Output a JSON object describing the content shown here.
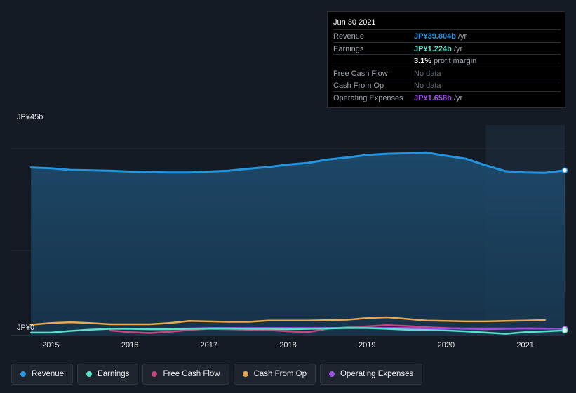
{
  "chart_data": {
    "type": "area",
    "y_axis": {
      "top_label": "JP¥45b",
      "bottom_label": "JP¥0",
      "ylim": [
        0,
        45
      ]
    },
    "x_ticks": [
      {
        "label": "2015",
        "x": 2015.0
      },
      {
        "label": "2016",
        "x": 2016.0
      },
      {
        "label": "2017",
        "x": 2017.0
      },
      {
        "label": "2018",
        "x": 2018.0
      },
      {
        "label": "2019",
        "x": 2019.0
      },
      {
        "label": "2020",
        "x": 2020.0
      },
      {
        "label": "2021",
        "x": 2021.0
      }
    ],
    "xlim": [
      2014.5,
      2021.5
    ],
    "forecast_start": 2020.5,
    "grid": true,
    "legend_position": "bottom",
    "series": [
      {
        "name": "Revenue",
        "color": "#2394df",
        "filled": true,
        "points": [
          [
            2014.75,
            40.5
          ],
          [
            2015.0,
            40.3
          ],
          [
            2015.25,
            39.9
          ],
          [
            2015.5,
            39.8
          ],
          [
            2015.75,
            39.7
          ],
          [
            2016.0,
            39.5
          ],
          [
            2016.25,
            39.4
          ],
          [
            2016.5,
            39.3
          ],
          [
            2016.75,
            39.3
          ],
          [
            2017.0,
            39.5
          ],
          [
            2017.25,
            39.7
          ],
          [
            2017.5,
            40.2
          ],
          [
            2017.75,
            40.6
          ],
          [
            2018.0,
            41.2
          ],
          [
            2018.25,
            41.6
          ],
          [
            2018.5,
            42.4
          ],
          [
            2018.75,
            42.9
          ],
          [
            2019.0,
            43.5
          ],
          [
            2019.25,
            43.8
          ],
          [
            2019.5,
            43.9
          ],
          [
            2019.75,
            44.1
          ],
          [
            2020.0,
            43.3
          ],
          [
            2020.25,
            42.6
          ],
          [
            2020.5,
            41.0
          ],
          [
            2020.75,
            39.6
          ],
          [
            2021.0,
            39.3
          ],
          [
            2021.25,
            39.2
          ],
          [
            2021.5,
            39.8
          ]
        ]
      },
      {
        "name": "Earnings",
        "color": "#59e0c8",
        "filled": false,
        "points": [
          [
            2014.75,
            0.7
          ],
          [
            2015.0,
            0.7
          ],
          [
            2015.25,
            1.1
          ],
          [
            2015.5,
            1.4
          ],
          [
            2015.75,
            1.6
          ],
          [
            2016.0,
            1.6
          ],
          [
            2016.25,
            1.5
          ],
          [
            2016.5,
            1.5
          ],
          [
            2016.75,
            1.6
          ],
          [
            2017.0,
            1.7
          ],
          [
            2017.25,
            1.7
          ],
          [
            2017.5,
            1.6
          ],
          [
            2017.75,
            1.6
          ],
          [
            2018.0,
            1.5
          ],
          [
            2018.25,
            1.6
          ],
          [
            2018.5,
            1.7
          ],
          [
            2018.75,
            1.8
          ],
          [
            2019.0,
            1.8
          ],
          [
            2019.25,
            1.6
          ],
          [
            2019.5,
            1.4
          ],
          [
            2019.75,
            1.3
          ],
          [
            2020.0,
            1.2
          ],
          [
            2020.25,
            1.0
          ],
          [
            2020.5,
            0.7
          ],
          [
            2020.75,
            0.4
          ],
          [
            2021.0,
            0.8
          ],
          [
            2021.25,
            1.0
          ],
          [
            2021.5,
            1.224
          ]
        ]
      },
      {
        "name": "Free Cash Flow",
        "color": "#c7467f",
        "filled": false,
        "points": [
          [
            2015.75,
            1.2
          ],
          [
            2016.0,
            0.8
          ],
          [
            2016.25,
            0.6
          ],
          [
            2016.5,
            0.9
          ],
          [
            2016.75,
            1.3
          ],
          [
            2017.0,
            1.6
          ],
          [
            2017.25,
            1.5
          ],
          [
            2017.5,
            1.4
          ],
          [
            2017.75,
            1.3
          ],
          [
            2018.0,
            1.0
          ],
          [
            2018.25,
            0.8
          ],
          [
            2018.5,
            1.6
          ],
          [
            2018.75,
            2.0
          ],
          [
            2019.0,
            2.2
          ],
          [
            2019.25,
            2.5
          ],
          [
            2019.5,
            2.3
          ],
          [
            2019.75,
            2.0
          ],
          [
            2020.0,
            1.8
          ],
          [
            2020.25,
            1.6
          ],
          [
            2020.5,
            1.5
          ],
          [
            2020.75,
            1.6
          ],
          [
            2021.0,
            1.7
          ],
          [
            2021.25,
            1.7
          ]
        ]
      },
      {
        "name": "Cash From Op",
        "color": "#e8a94d",
        "filled": false,
        "points": [
          [
            2014.75,
            2.6
          ],
          [
            2015.0,
            3.0
          ],
          [
            2015.25,
            3.2
          ],
          [
            2015.5,
            3.0
          ],
          [
            2015.75,
            2.7
          ],
          [
            2016.0,
            2.7
          ],
          [
            2016.25,
            2.7
          ],
          [
            2016.5,
            3.0
          ],
          [
            2016.75,
            3.5
          ],
          [
            2017.0,
            3.4
          ],
          [
            2017.25,
            3.3
          ],
          [
            2017.5,
            3.3
          ],
          [
            2017.75,
            3.6
          ],
          [
            2018.0,
            3.6
          ],
          [
            2018.25,
            3.6
          ],
          [
            2018.5,
            3.7
          ],
          [
            2018.75,
            3.8
          ],
          [
            2019.0,
            4.2
          ],
          [
            2019.25,
            4.4
          ],
          [
            2019.5,
            4.0
          ],
          [
            2019.75,
            3.6
          ],
          [
            2020.0,
            3.5
          ],
          [
            2020.25,
            3.4
          ],
          [
            2020.5,
            3.4
          ],
          [
            2020.75,
            3.5
          ],
          [
            2021.0,
            3.6
          ],
          [
            2021.25,
            3.7
          ]
        ]
      },
      {
        "name": "Operating Expenses",
        "color": "#9b4fe0",
        "filled": false,
        "points": [
          [
            2016.5,
            1.6
          ],
          [
            2016.75,
            1.7
          ],
          [
            2017.0,
            1.8
          ],
          [
            2017.25,
            1.8
          ],
          [
            2017.5,
            1.8
          ],
          [
            2017.75,
            1.8
          ],
          [
            2018.0,
            1.8
          ],
          [
            2018.25,
            1.8
          ],
          [
            2018.5,
            1.8
          ],
          [
            2018.75,
            1.8
          ],
          [
            2019.0,
            1.8
          ],
          [
            2019.25,
            1.8
          ],
          [
            2019.5,
            1.8
          ],
          [
            2019.75,
            1.7
          ],
          [
            2020.0,
            1.7
          ],
          [
            2020.25,
            1.7
          ],
          [
            2020.5,
            1.7
          ],
          [
            2020.75,
            1.7
          ],
          [
            2021.0,
            1.7
          ],
          [
            2021.25,
            1.66
          ],
          [
            2021.5,
            1.658
          ]
        ]
      }
    ]
  },
  "tooltip": {
    "date": "Jun 30 2021",
    "rows": [
      {
        "label": "Revenue",
        "value": "JP¥39.804b",
        "suffix": " /yr",
        "color": "#2394df"
      },
      {
        "label": "Earnings",
        "value": "JP¥1.224b",
        "suffix": " /yr",
        "color": "#59e0c8"
      },
      {
        "label": "",
        "value": "3.1%",
        "suffix": " profit margin",
        "color": "#ffffff"
      },
      {
        "label": "Free Cash Flow",
        "value": "",
        "suffix": "No data",
        "color": "#6b7179"
      },
      {
        "label": "Cash From Op",
        "value": "",
        "suffix": "No data",
        "color": "#6b7179"
      },
      {
        "label": "Operating Expenses",
        "value": "JP¥1.658b",
        "suffix": " /yr",
        "color": "#9b4fe0"
      }
    ]
  },
  "legend": [
    {
      "label": "Revenue",
      "color": "#2394df"
    },
    {
      "label": "Earnings",
      "color": "#59e0c8"
    },
    {
      "label": "Free Cash Flow",
      "color": "#c7467f"
    },
    {
      "label": "Cash From Op",
      "color": "#e8a94d"
    },
    {
      "label": "Operating Expenses",
      "color": "#9b4fe0"
    }
  ]
}
